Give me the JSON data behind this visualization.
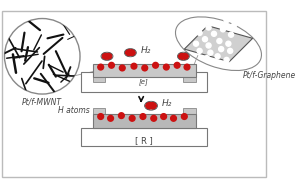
{
  "red_dot_color": "#cc1111",
  "label_mwnt": "Pt/f-MWNT",
  "label_graphene": "Pt/f-Graphene",
  "label_h2_top": "H₂",
  "label_h_atoms": "H atoms",
  "label_h2_bottom": "H₂",
  "label_R": "R",
  "label_e": "e",
  "sensor_color": "#c8c8c8",
  "sensor_edge": "#777777",
  "circuit_edge": "#777777",
  "mwnt_lines_color": "#111111",
  "graphene_fill": "#d0d0d0",
  "graphene_edge": "#555555",
  "arrow_color": "#111111",
  "text_color": "#444444",
  "bg_color": "#ffffff",
  "border_color": "#bbbbbb"
}
